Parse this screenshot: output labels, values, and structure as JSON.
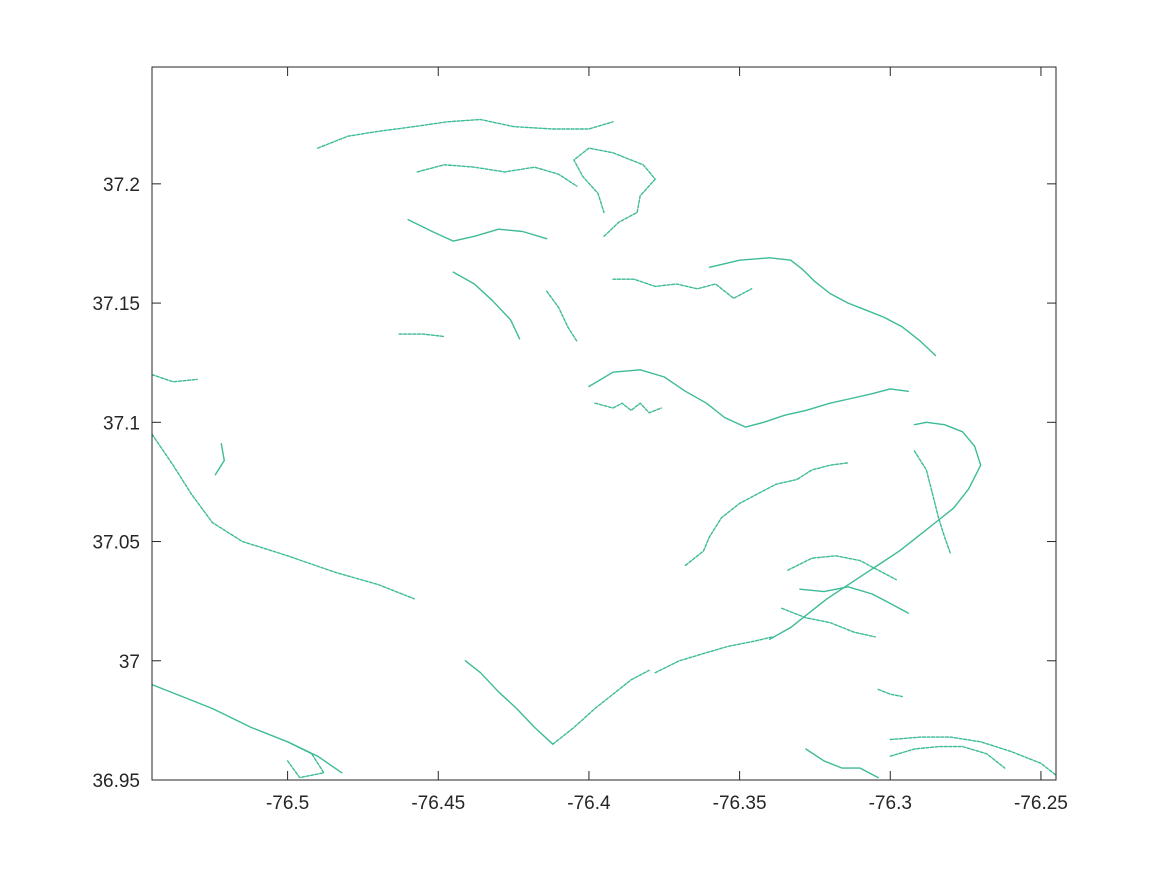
{
  "chart_data": {
    "type": "map",
    "title": "",
    "xlabel": "",
    "ylabel": "",
    "xlim": [
      -76.545,
      -76.245
    ],
    "ylim": [
      36.95,
      37.249
    ],
    "x_ticks": [
      -76.5,
      -76.45,
      -76.4,
      -76.35,
      -76.3,
      -76.25
    ],
    "y_ticks": [
      36.95,
      37.0,
      37.05,
      37.1,
      37.15,
      37.2
    ],
    "x_tick_labels": [
      "-76.5",
      "-76.45",
      "-76.4",
      "-76.35",
      "-76.3",
      "-76.25"
    ],
    "y_tick_labels": [
      "36.95",
      "37",
      "37.05",
      "37.1",
      "37.15",
      "37.2"
    ],
    "grid": false,
    "box": true,
    "line_color": "#3dbb98",
    "series": [
      {
        "kind": "coastline",
        "lines": [
          [
            [
              -76.4,
              37.115
            ],
            [
              -76.392,
              37.121
            ],
            [
              -76.383,
              37.122
            ],
            [
              -76.375,
              37.119
            ],
            [
              -76.368,
              37.113
            ],
            [
              -76.361,
              37.108
            ],
            [
              -76.355,
              37.102
            ],
            [
              -76.348,
              37.098
            ],
            [
              -76.342,
              37.1
            ],
            [
              -76.335,
              37.103
            ],
            [
              -76.328,
              37.105
            ],
            [
              -76.32,
              37.108
            ],
            [
              -76.313,
              37.11
            ],
            [
              -76.306,
              37.112
            ],
            [
              -76.3,
              37.114
            ],
            [
              -76.294,
              37.113
            ]
          ],
          [
            [
              -76.398,
              37.108
            ],
            [
              -76.392,
              37.106
            ],
            [
              -76.389,
              37.108
            ],
            [
              -76.386,
              37.105
            ],
            [
              -76.383,
              37.108
            ],
            [
              -76.38,
              37.104
            ],
            [
              -76.376,
              37.106
            ]
          ],
          [
            [
              -76.368,
              37.04
            ],
            [
              -76.362,
              37.046
            ],
            [
              -76.36,
              37.052
            ],
            [
              -76.356,
              37.06
            ],
            [
              -76.35,
              37.066
            ],
            [
              -76.344,
              37.07
            ],
            [
              -76.338,
              37.074
            ],
            [
              -76.331,
              37.076
            ],
            [
              -76.326,
              37.08
            ],
            [
              -76.32,
              37.082
            ],
            [
              -76.314,
              37.083
            ]
          ],
          [
            [
              -76.34,
              37.009
            ],
            [
              -76.333,
              37.014
            ],
            [
              -76.327,
              37.02
            ],
            [
              -76.321,
              37.026
            ],
            [
              -76.315,
              37.031
            ],
            [
              -76.309,
              37.036
            ],
            [
              -76.303,
              37.041
            ],
            [
              -76.297,
              37.046
            ],
            [
              -76.291,
              37.052
            ],
            [
              -76.285,
              37.058
            ],
            [
              -76.279,
              37.064
            ],
            [
              -76.274,
              37.072
            ],
            [
              -76.27,
              37.082
            ],
            [
              -76.272,
              37.09
            ],
            [
              -76.276,
              37.096
            ],
            [
              -76.282,
              37.099
            ],
            [
              -76.288,
              37.1
            ],
            [
              -76.292,
              37.099
            ]
          ],
          [
            [
              -76.378,
              36.995
            ],
            [
              -76.37,
              37.0
            ],
            [
              -76.362,
              37.003
            ],
            [
              -76.354,
              37.006
            ],
            [
              -76.346,
              37.008
            ],
            [
              -76.339,
              37.01
            ]
          ],
          [
            [
              -76.334,
              37.038
            ],
            [
              -76.326,
              37.043
            ],
            [
              -76.318,
              37.044
            ],
            [
              -76.31,
              37.042
            ],
            [
              -76.304,
              37.038
            ],
            [
              -76.298,
              37.034
            ]
          ],
          [
            [
              -76.33,
              37.03
            ],
            [
              -76.322,
              37.029
            ],
            [
              -76.314,
              37.031
            ],
            [
              -76.306,
              37.028
            ],
            [
              -76.3,
              37.024
            ],
            [
              -76.294,
              37.02
            ]
          ],
          [
            [
              -76.336,
              37.022
            ],
            [
              -76.328,
              37.018
            ],
            [
              -76.32,
              37.016
            ],
            [
              -76.312,
              37.012
            ],
            [
              -76.305,
              37.01
            ]
          ],
          [
            [
              -76.292,
              37.088
            ],
            [
              -76.288,
              37.08
            ],
            [
              -76.286,
              37.07
            ],
            [
              -76.284,
              37.06
            ],
            [
              -76.282,
              37.052
            ],
            [
              -76.28,
              37.045
            ]
          ],
          [
            [
              -76.412,
              36.965
            ],
            [
              -76.418,
              36.972
            ],
            [
              -76.424,
              36.98
            ],
            [
              -76.43,
              36.987
            ],
            [
              -76.436,
              36.995
            ],
            [
              -76.441,
              37.0
            ]
          ],
          [
            [
              -76.412,
              36.965
            ],
            [
              -76.405,
              36.972
            ],
            [
              -76.398,
              36.98
            ],
            [
              -76.392,
              36.986
            ],
            [
              -76.386,
              36.992
            ],
            [
              -76.38,
              36.996
            ]
          ],
          [
            [
              -76.392,
              37.16
            ],
            [
              -76.385,
              37.16
            ],
            [
              -76.378,
              37.157
            ],
            [
              -76.371,
              37.158
            ],
            [
              -76.364,
              37.156
            ],
            [
              -76.358,
              37.158
            ],
            [
              -76.352,
              37.152
            ],
            [
              -76.346,
              37.156
            ]
          ],
          [
            [
              -76.36,
              37.165
            ],
            [
              -76.35,
              37.168
            ],
            [
              -76.34,
              37.169
            ],
            [
              -76.333,
              37.168
            ],
            [
              -76.329,
              37.164
            ],
            [
              -76.325,
              37.159
            ],
            [
              -76.32,
              37.154
            ],
            [
              -76.314,
              37.15
            ],
            [
              -76.308,
              37.147
            ],
            [
              -76.302,
              37.144
            ],
            [
              -76.296,
              37.14
            ],
            [
              -76.29,
              37.134
            ],
            [
              -76.285,
              37.128
            ]
          ],
          [
            [
              -76.395,
              37.178
            ],
            [
              -76.39,
              37.184
            ],
            [
              -76.384,
              37.188
            ],
            [
              -76.383,
              37.195
            ],
            [
              -76.378,
              37.202
            ],
            [
              -76.382,
              37.208
            ],
            [
              -76.392,
              37.213
            ],
            [
              -76.4,
              37.215
            ],
            [
              -76.405,
              37.21
            ],
            [
              -76.402,
              37.203
            ],
            [
              -76.397,
              37.196
            ],
            [
              -76.395,
              37.188
            ]
          ],
          [
            [
              -76.457,
              37.205
            ],
            [
              -76.448,
              37.208
            ],
            [
              -76.438,
              37.207
            ],
            [
              -76.428,
              37.205
            ],
            [
              -76.418,
              37.207
            ],
            [
              -76.41,
              37.204
            ],
            [
              -76.404,
              37.199
            ]
          ],
          [
            [
              -76.46,
              37.185
            ],
            [
              -76.452,
              37.18
            ],
            [
              -76.445,
              37.176
            ],
            [
              -76.438,
              37.178
            ],
            [
              -76.43,
              37.181
            ],
            [
              -76.422,
              37.18
            ],
            [
              -76.414,
              37.177
            ]
          ],
          [
            [
              -76.49,
              37.215
            ],
            [
              -76.48,
              37.22
            ],
            [
              -76.47,
              37.222
            ],
            [
              -76.458,
              37.224
            ],
            [
              -76.447,
              37.226
            ],
            [
              -76.436,
              37.227
            ],
            [
              -76.425,
              37.224
            ],
            [
              -76.412,
              37.223
            ],
            [
              -76.4,
              37.223
            ],
            [
              -76.392,
              37.226
            ]
          ],
          [
            [
              -76.463,
              37.137
            ],
            [
              -76.455,
              37.137
            ],
            [
              -76.448,
              37.136
            ]
          ],
          [
            [
              -76.445,
              37.163
            ],
            [
              -76.438,
              37.158
            ],
            [
              -76.432,
              37.151
            ],
            [
              -76.426,
              37.143
            ],
            [
              -76.423,
              37.135
            ]
          ],
          [
            [
              -76.414,
              37.155
            ],
            [
              -76.41,
              37.148
            ],
            [
              -76.407,
              37.14
            ],
            [
              -76.404,
              37.134
            ]
          ],
          [
            [
              -76.545,
              37.12
            ],
            [
              -76.538,
              37.117
            ],
            [
              -76.53,
              37.118
            ]
          ],
          [
            [
              -76.545,
              36.99
            ],
            [
              -76.535,
              36.985
            ],
            [
              -76.525,
              36.98
            ],
            [
              -76.512,
              36.972
            ],
            [
              -76.5,
              36.966
            ],
            [
              -76.49,
              36.96
            ],
            [
              -76.482,
              36.953
            ]
          ],
          [
            [
              -76.5,
              36.966
            ],
            [
              -76.492,
              36.961
            ],
            [
              -76.488,
              36.953
            ],
            [
              -76.496,
              36.951
            ],
            [
              -76.5,
              36.958
            ]
          ],
          [
            [
              -76.545,
              37.095
            ],
            [
              -76.538,
              37.082
            ],
            [
              -76.532,
              37.07
            ],
            [
              -76.525,
              37.058
            ],
            [
              -76.515,
              37.05
            ],
            [
              -76.5,
              37.044
            ],
            [
              -76.484,
              37.037
            ],
            [
              -76.47,
              37.032
            ],
            [
              -76.458,
              37.026
            ]
          ],
          [
            [
              -76.522,
              37.091
            ],
            [
              -76.521,
              37.084
            ],
            [
              -76.524,
              37.078
            ]
          ],
          [
            [
              -76.3,
              36.967
            ],
            [
              -76.29,
              36.968
            ],
            [
              -76.28,
              36.968
            ],
            [
              -76.27,
              36.966
            ],
            [
              -76.26,
              36.962
            ],
            [
              -76.25,
              36.957
            ],
            [
              -76.245,
              36.952
            ]
          ],
          [
            [
              -76.3,
              36.96
            ],
            [
              -76.292,
              36.963
            ],
            [
              -76.284,
              36.964
            ],
            [
              -76.276,
              36.964
            ],
            [
              -76.268,
              36.961
            ],
            [
              -76.262,
              36.955
            ]
          ],
          [
            [
              -76.328,
              36.963
            ],
            [
              -76.322,
              36.958
            ],
            [
              -76.316,
              36.955
            ],
            [
              -76.31,
              36.955
            ],
            [
              -76.304,
              36.951
            ]
          ],
          [
            [
              -76.304,
              36.988
            ],
            [
              -76.3,
              36.986
            ],
            [
              -76.296,
              36.985
            ]
          ]
        ]
      }
    ]
  }
}
